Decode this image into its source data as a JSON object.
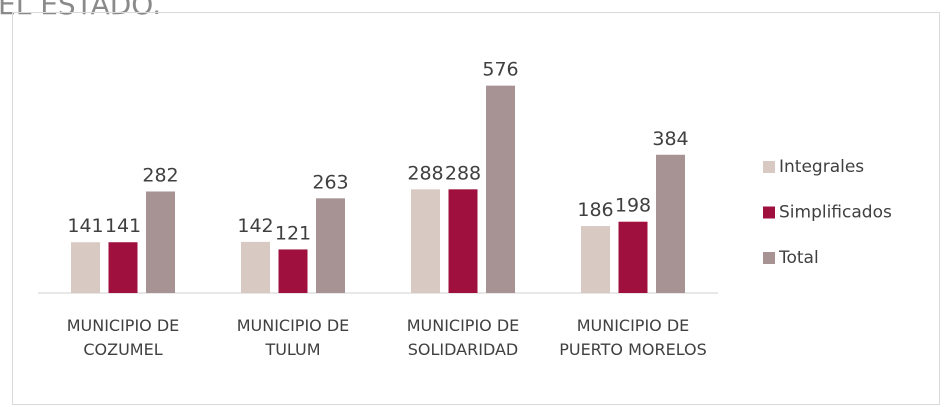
{
  "chart_data": {
    "type": "bar",
    "title": "EL ESTADO.",
    "categories": [
      "MUNICIPIO DE COZUMEL",
      "MUNICIPIO DE TULUM",
      "MUNICIPIO DE SOLIDARIDAD",
      "MUNICIPIO DE PUERTO MORELOS"
    ],
    "series": [
      {
        "name": "Integrales",
        "color": "#d9c9c3",
        "values": [
          141,
          142,
          288,
          186
        ]
      },
      {
        "name": "Simplificados",
        "color": "#a0103e",
        "values": [
          141,
          121,
          288,
          198
        ]
      },
      {
        "name": "Total",
        "color": "#a79393",
        "values": [
          282,
          263,
          576,
          384
        ]
      }
    ],
    "legend": "right"
  }
}
